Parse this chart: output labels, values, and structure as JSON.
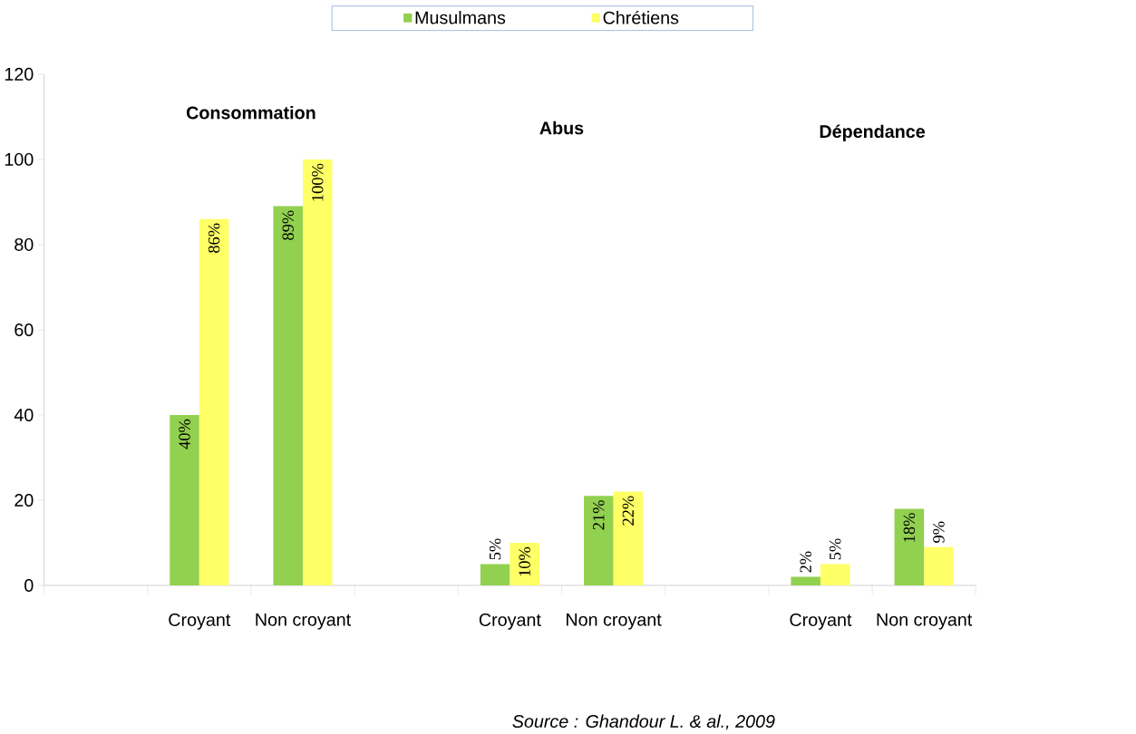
{
  "chart_data": {
    "type": "bar",
    "categories": [
      null,
      "Croyant",
      "Non croyant",
      null,
      "Croyant",
      "Non croyant",
      null,
      "Croyant",
      "Non croyant"
    ],
    "series": [
      {
        "name": "Musulmans",
        "color": "#92d050",
        "values": [
          null,
          40,
          89,
          null,
          5,
          21,
          null,
          2,
          18
        ],
        "value_labels": [
          null,
          "40%",
          "89%",
          null,
          "5%",
          "21%",
          null,
          "2%",
          "18%"
        ]
      },
      {
        "name": "Chrétiens",
        "color": "#ffff66",
        "values": [
          null,
          86,
          100,
          null,
          10,
          22,
          null,
          5,
          9
        ],
        "value_labels": [
          null,
          "86%",
          "100%",
          null,
          "10%",
          "22%",
          null,
          "5%",
          "9%"
        ]
      }
    ],
    "ylim": [
      0,
      120
    ],
    "yticks": [
      0,
      20,
      40,
      60,
      80,
      100,
      120
    ],
    "legend": "top",
    "grid": false,
    "annotations": [
      "Consommation",
      "Abus",
      "Dépendance",
      "Source : Ghandour L. & al., 2009"
    ]
  }
}
